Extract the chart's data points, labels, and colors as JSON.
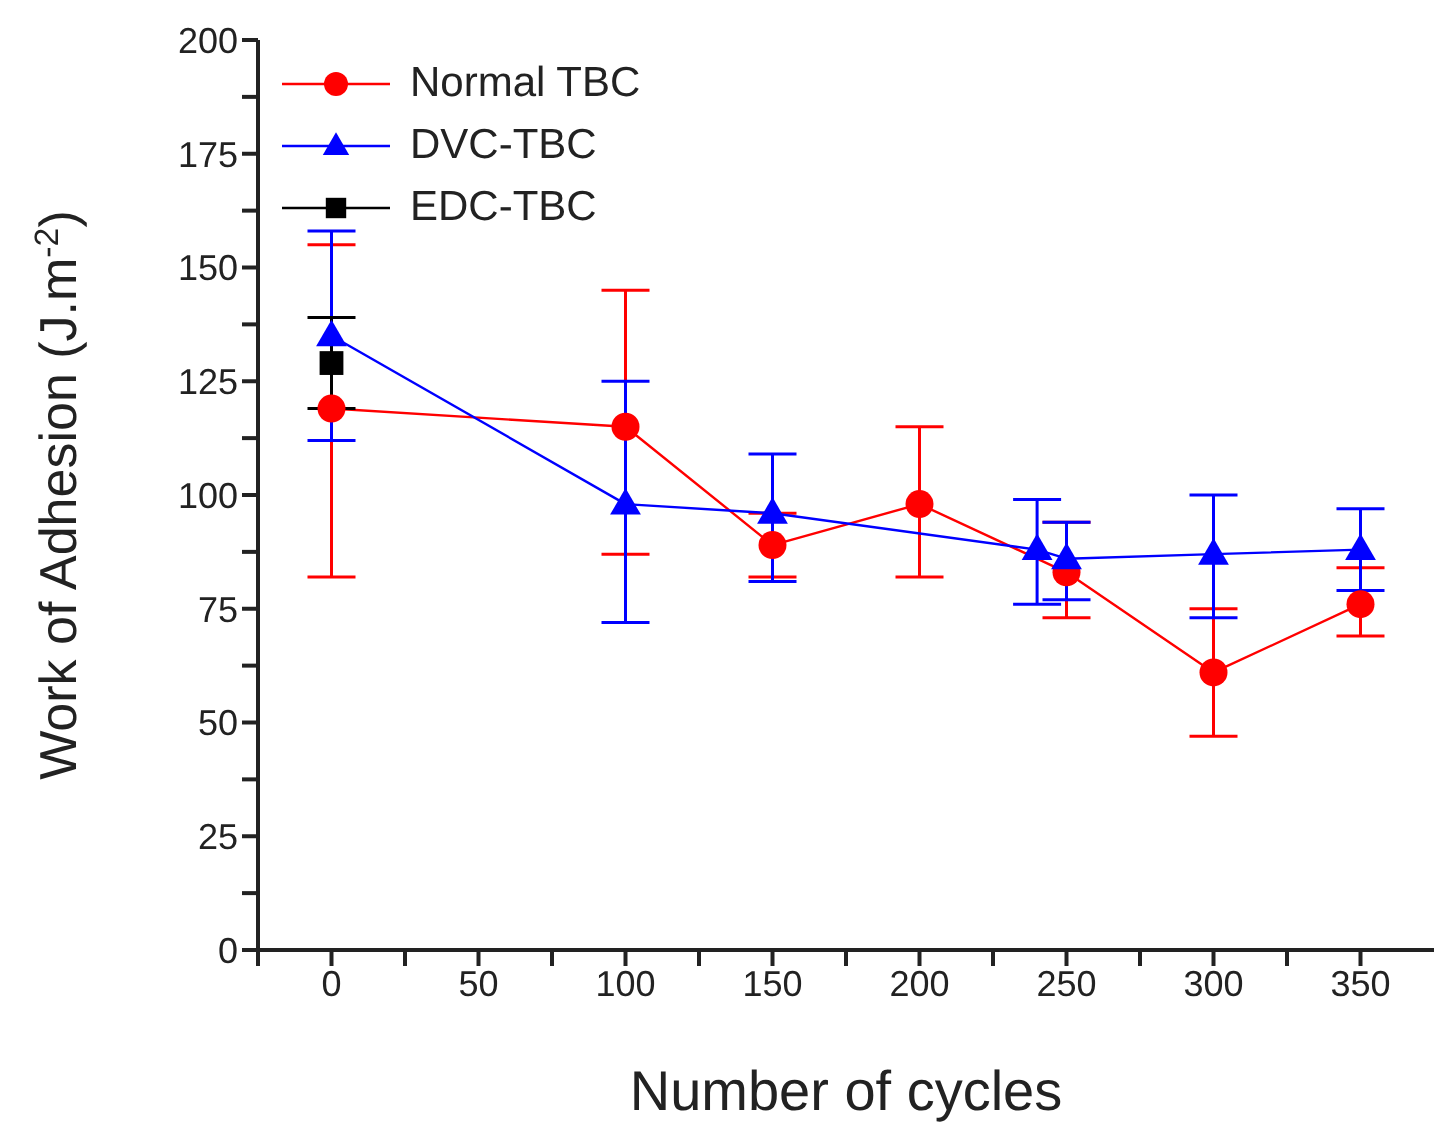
{
  "chart_data": {
    "type": "line",
    "xlabel": "Number of cycles",
    "ylabel": "Work of Adhesion (J.m$^{-2}$)",
    "xlim": [
      -25,
      375
    ],
    "xticks": [
      {
        "value": -25,
        "label": null
      },
      0,
      {
        "value": 25,
        "label": null
      },
      50,
      {
        "value": 75,
        "label": null
      },
      100,
      {
        "value": 125,
        "label": null
      },
      150,
      {
        "value": 175,
        "label": null
      },
      200,
      {
        "value": 225,
        "label": null
      },
      250,
      {
        "value": 275,
        "label": null
      },
      300,
      {
        "value": 325,
        "label": null
      },
      350
    ],
    "ylim": [
      0,
      200
    ],
    "yticks": [
      0,
      {
        "value": 12.5,
        "label": null
      },
      25,
      {
        "value": 37.5,
        "label": null
      },
      50,
      {
        "value": 62.5,
        "label": null
      },
      75,
      {
        "value": 87.5,
        "label": null
      },
      100,
      {
        "value": 112.5,
        "label": null
      },
      125,
      {
        "value": 137.5,
        "label": null
      },
      150,
      {
        "value": 162.5,
        "label": null
      },
      175,
      {
        "value": 187.5,
        "label": null
      },
      200
    ],
    "grid": false,
    "legend": "top left",
    "line_style": "solid",
    "series": [
      {
        "name": "Normal TBC",
        "color": "#ff0000",
        "marker": "circle",
        "x": [
          0,
          100,
          150,
          200,
          250,
          300,
          350
        ],
        "values": [
          119,
          115,
          89,
          98,
          83,
          61,
          76
        ],
        "errors": [
          [
            82,
            155
          ],
          [
            87,
            145
          ],
          [
            82,
            96
          ],
          [
            82,
            115
          ],
          [
            73,
            94
          ],
          [
            47,
            75
          ],
          [
            69,
            84
          ]
        ]
      },
      {
        "name": "DVC-TBC",
        "color": "#0000ff",
        "marker": "triangle",
        "x": [
          0,
          100,
          150,
          240,
          250,
          300,
          350
        ],
        "values": [
          135,
          98,
          96,
          88,
          86,
          87,
          88
        ],
        "errors": [
          [
            112,
            158
          ],
          [
            72,
            125
          ],
          [
            81,
            109
          ],
          [
            76,
            99
          ],
          [
            77,
            94
          ],
          [
            73,
            100
          ],
          [
            79,
            97
          ]
        ]
      },
      {
        "name": "EDC-TBC",
        "color": "#000000",
        "marker": "square",
        "x": [
          0
        ],
        "values": [
          129
        ],
        "errors": [
          10
        ]
      }
    ]
  }
}
